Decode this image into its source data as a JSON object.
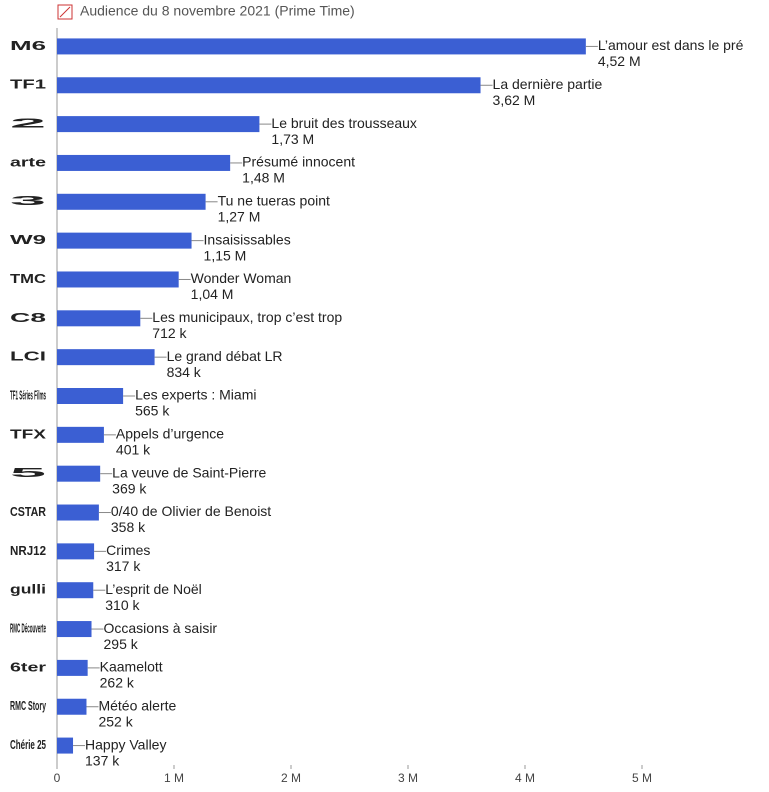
{
  "chart_data": {
    "type": "bar",
    "orientation": "horizontal",
    "title": "Audience du 8 novembre 2021 (Prime Time)",
    "categories": [
      "M6",
      "TF1",
      "2",
      "arte",
      "3",
      "W9",
      "TMC",
      "C8",
      "LCI",
      "TF1 Séries Films",
      "TFX",
      "5",
      "CSTAR",
      "NRJ12",
      "gulli",
      "RMC Découverte",
      "6ter",
      "RMC Story",
      "Chérie 25"
    ],
    "programs": [
      "L’amour est dans le pré",
      "La dernière partie",
      "Le bruit des trousseaux",
      "Présumé innocent",
      "Tu ne tueras point",
      "Insaisissables",
      "Wonder Woman",
      "Les municipaux, trop c’est trop",
      "Le grand débat LR",
      "Les experts : Miami",
      "Appels d’urgence",
      "La veuve de Saint-Pierre",
      "0/40 de Olivier de Benoist",
      "Crimes",
      "L’esprit de Noël",
      "Occasions à saisir",
      "Kaamelott",
      "Météo alerte",
      "Happy Valley"
    ],
    "values": [
      4.52,
      3.62,
      1.73,
      1.48,
      1.27,
      1.15,
      1.04,
      0.712,
      0.834,
      0.565,
      0.401,
      0.369,
      0.358,
      0.317,
      0.31,
      0.295,
      0.262,
      0.252,
      0.137
    ],
    "value_labels": [
      "4,52 M",
      "3,62 M",
      "1,73 M",
      "1,48 M",
      "1,27 M",
      "1,15 M",
      "1,04 M",
      "712 k",
      "834 k",
      "565 k",
      "401 k",
      "369 k",
      "358 k",
      "317 k",
      "310 k",
      "295 k",
      "262 k",
      "252 k",
      "137 k"
    ],
    "color": "#3b5fd3",
    "logo_colors": [
      "#c8102e",
      "#0c3c8c",
      "#e2001a",
      "#e05a1e",
      "#0b2d6b",
      "#6b2c91",
      "#222222",
      "#222222",
      "#0c3c8c",
      "#0c3c8c",
      "#e05a1e",
      "#1a1a1a",
      "#111111",
      "#e2001a",
      "#6ab023",
      "#0c3c8c",
      "#e2001a",
      "#e0a020",
      "#c8102e"
    ],
    "xlim": [
      0,
      6
    ],
    "xticks": [
      0,
      {
        "value": 1,
        "label": "1 M"
      },
      {
        "value": 2,
        "label": "2 M"
      },
      {
        "value": 3,
        "label": "3 M"
      },
      {
        "value": 4,
        "label": "4 M"
      },
      {
        "value": 5,
        "label": "5 M"
      }
    ],
    "grid": false
  }
}
